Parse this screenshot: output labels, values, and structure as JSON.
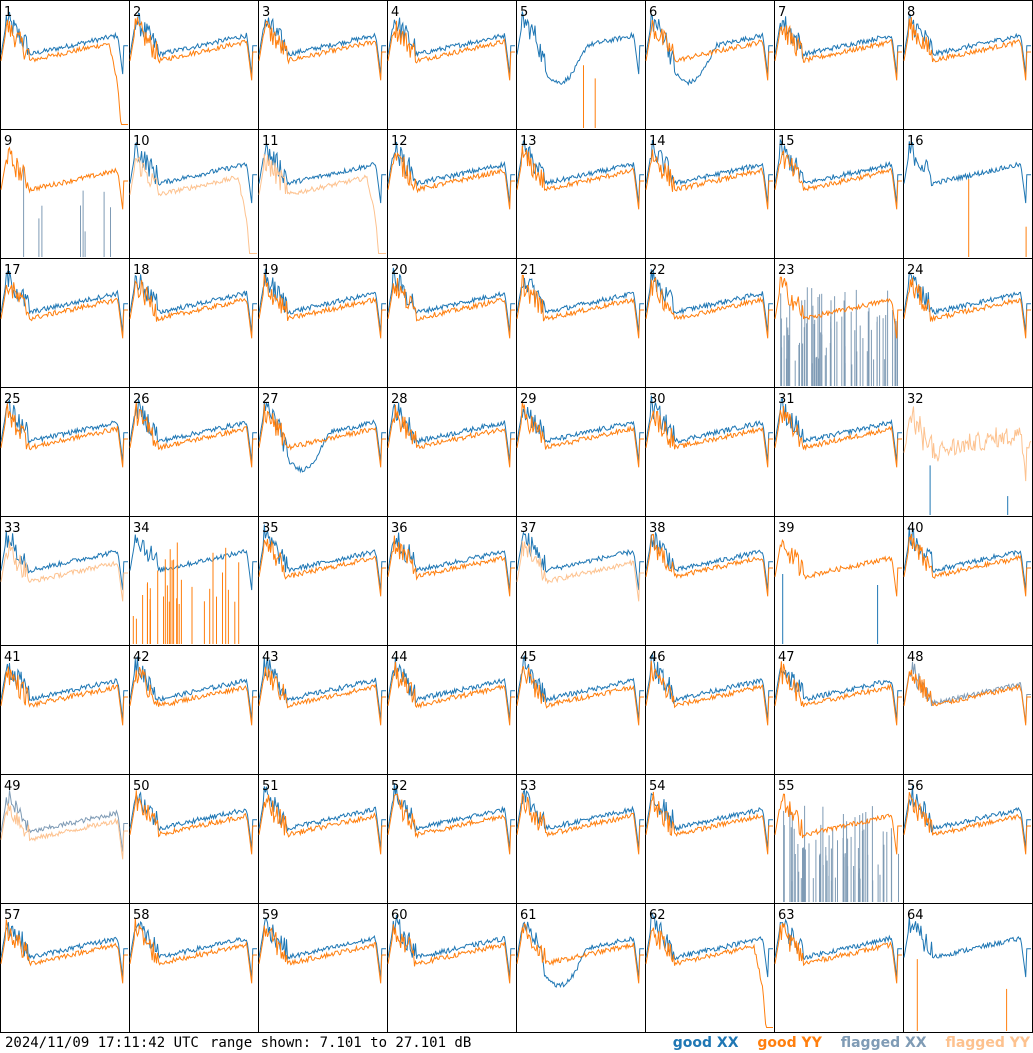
{
  "chart_data": {
    "type": "line",
    "layout": "8x8 small multiples",
    "panel_labels": [
      "1",
      "2",
      "3",
      "4",
      "5",
      "6",
      "7",
      "8",
      "9",
      "10",
      "11",
      "12",
      "13",
      "14",
      "15",
      "16",
      "17",
      "18",
      "19",
      "20",
      "21",
      "22",
      "23",
      "24",
      "25",
      "26",
      "27",
      "28",
      "29",
      "30",
      "31",
      "32",
      "33",
      "34",
      "35",
      "36",
      "37",
      "38",
      "39",
      "40",
      "41",
      "42",
      "43",
      "44",
      "45",
      "46",
      "47",
      "48",
      "49",
      "50",
      "51",
      "52",
      "53",
      "54",
      "55",
      "56",
      "57",
      "58",
      "59",
      "60",
      "61",
      "62",
      "63",
      "64"
    ],
    "ylim_db": [
      7.101,
      27.101
    ],
    "colors": {
      "good_xx": "#1f77b4",
      "good_yy": "#ff7f0e",
      "flagged_xx": "#7f9bb5",
      "flagged_yy": "#fdc28f"
    },
    "series_names": [
      "good XX",
      "good YY",
      "flagged XX",
      "flagged YY"
    ],
    "panels": {
      "1": {
        "xx": "good",
        "yy": "good",
        "yy_shape": "droop",
        "xx_shape": "normal"
      },
      "5": {
        "xx": "good",
        "yy": "spike",
        "xx_shape": "dip"
      },
      "6": {
        "xx": "good",
        "yy": "good",
        "xx_shape": "dip"
      },
      "9": {
        "xx": "flagspike",
        "yy": "good"
      },
      "10": {
        "xx": "good",
        "yy": "flagged",
        "yy_shape": "droop"
      },
      "11": {
        "xx": "good",
        "yy": "flagged",
        "yy_shape": "droop"
      },
      "16": {
        "xx": "good",
        "yy": "spike"
      },
      "23": {
        "xx": "noise",
        "yy": "good"
      },
      "27": {
        "xx": "good",
        "yy": "good",
        "xx_shape": "dip"
      },
      "32": {
        "xx": "spike",
        "yy": "flagged",
        "yy_shape": "noisy"
      },
      "33": {
        "xx": "good",
        "yy": "flagged"
      },
      "34": {
        "xx": "good",
        "yy": "spike"
      },
      "37": {
        "xx": "good",
        "yy": "flagged"
      },
      "39": {
        "xx": "spike",
        "yy": "good"
      },
      "48": {
        "xx": "flagged",
        "yy": "good"
      },
      "49": {
        "xx": "flagged",
        "yy": "flagged"
      },
      "55": {
        "xx": "noise",
        "yy": "good"
      },
      "61": {
        "xx": "good",
        "yy": "good",
        "xx_shape": "dip"
      },
      "62": {
        "xx": "good",
        "yy": "good",
        "yy_shape": "droop"
      },
      "64": {
        "xx": "good",
        "yy": "spike"
      }
    }
  },
  "footer": {
    "timestamp": "2024/11/09 17:11:42 UTC",
    "range_text": "range shown: 7.101 to 27.101 dB",
    "legend": {
      "good_xx": "good XX",
      "good_yy": "good YY",
      "flagged_xx": "flagged XX",
      "flagged_yy": "flagged YY"
    }
  }
}
